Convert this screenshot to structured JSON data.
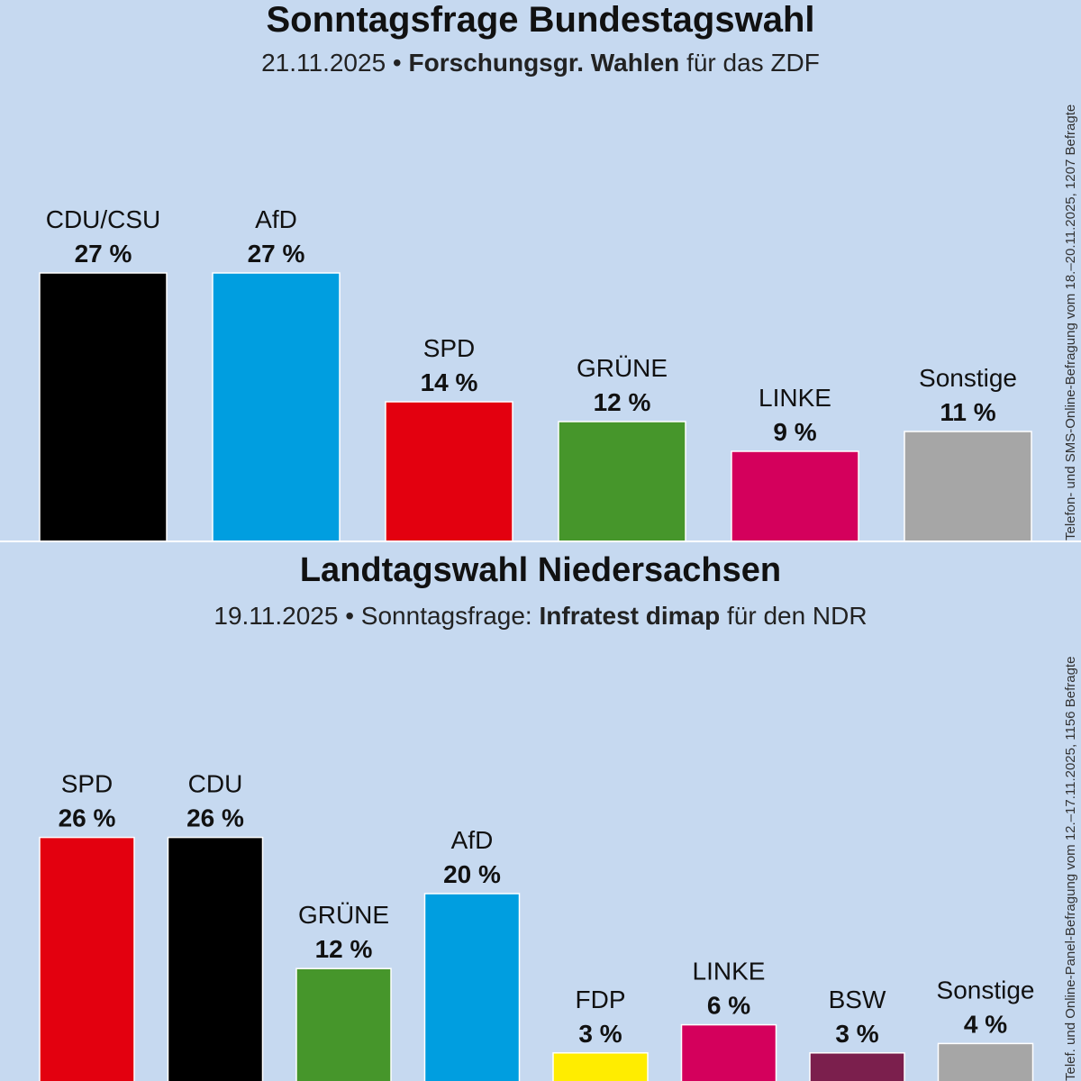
{
  "chart_data": [
    {
      "type": "bar",
      "title": "Sonntagsfrage Bundestagswahl",
      "subtitle_date": "21.11.2025 •",
      "subtitle_institute": "Forschungsgr. Wahlen",
      "subtitle_client": "für das ZDF",
      "note": "Telefon- und SMS-Online-Befragung vom 18.–20.11.2025, 1207 Befragte",
      "categories": [
        "CDU/CSU",
        "AfD",
        "SPD",
        "GRÜNE",
        "LINKE",
        "Sonstige"
      ],
      "values": [
        27,
        27,
        14,
        12,
        9,
        11
      ],
      "value_labels": [
        "27 %",
        "27 %",
        "14 %",
        "12 %",
        "9 %",
        "11 %"
      ],
      "colors": [
        "#000000",
        "#009ee0",
        "#e3000f",
        "#46962b",
        "#d4005c",
        "#a6a6a6"
      ]
    },
    {
      "type": "bar",
      "title": "Landtagswahl Niedersachsen",
      "subtitle_date": "19.11.2025 • Sonntagsfrage:",
      "subtitle_institute": "Infratest dimap",
      "subtitle_client": "für den NDR",
      "note": "Telef. und Online-Panel-Befragung vom 12.–17.11.2025, 1156 Befragte",
      "categories": [
        "SPD",
        "CDU",
        "GRÜNE",
        "AfD",
        "FDP",
        "LINKE",
        "BSW",
        "Sonstige"
      ],
      "values": [
        26,
        26,
        12,
        20,
        3,
        6,
        3,
        4
      ],
      "value_labels": [
        "26 %",
        "26 %",
        "12 %",
        "20 %",
        "3 %",
        "6 %",
        "3 %",
        "4 %"
      ],
      "colors": [
        "#e3000f",
        "#000000",
        "#46962b",
        "#009ee0",
        "#ffed00",
        "#d4005c",
        "#7b1f4d",
        "#a6a6a6"
      ]
    }
  ]
}
